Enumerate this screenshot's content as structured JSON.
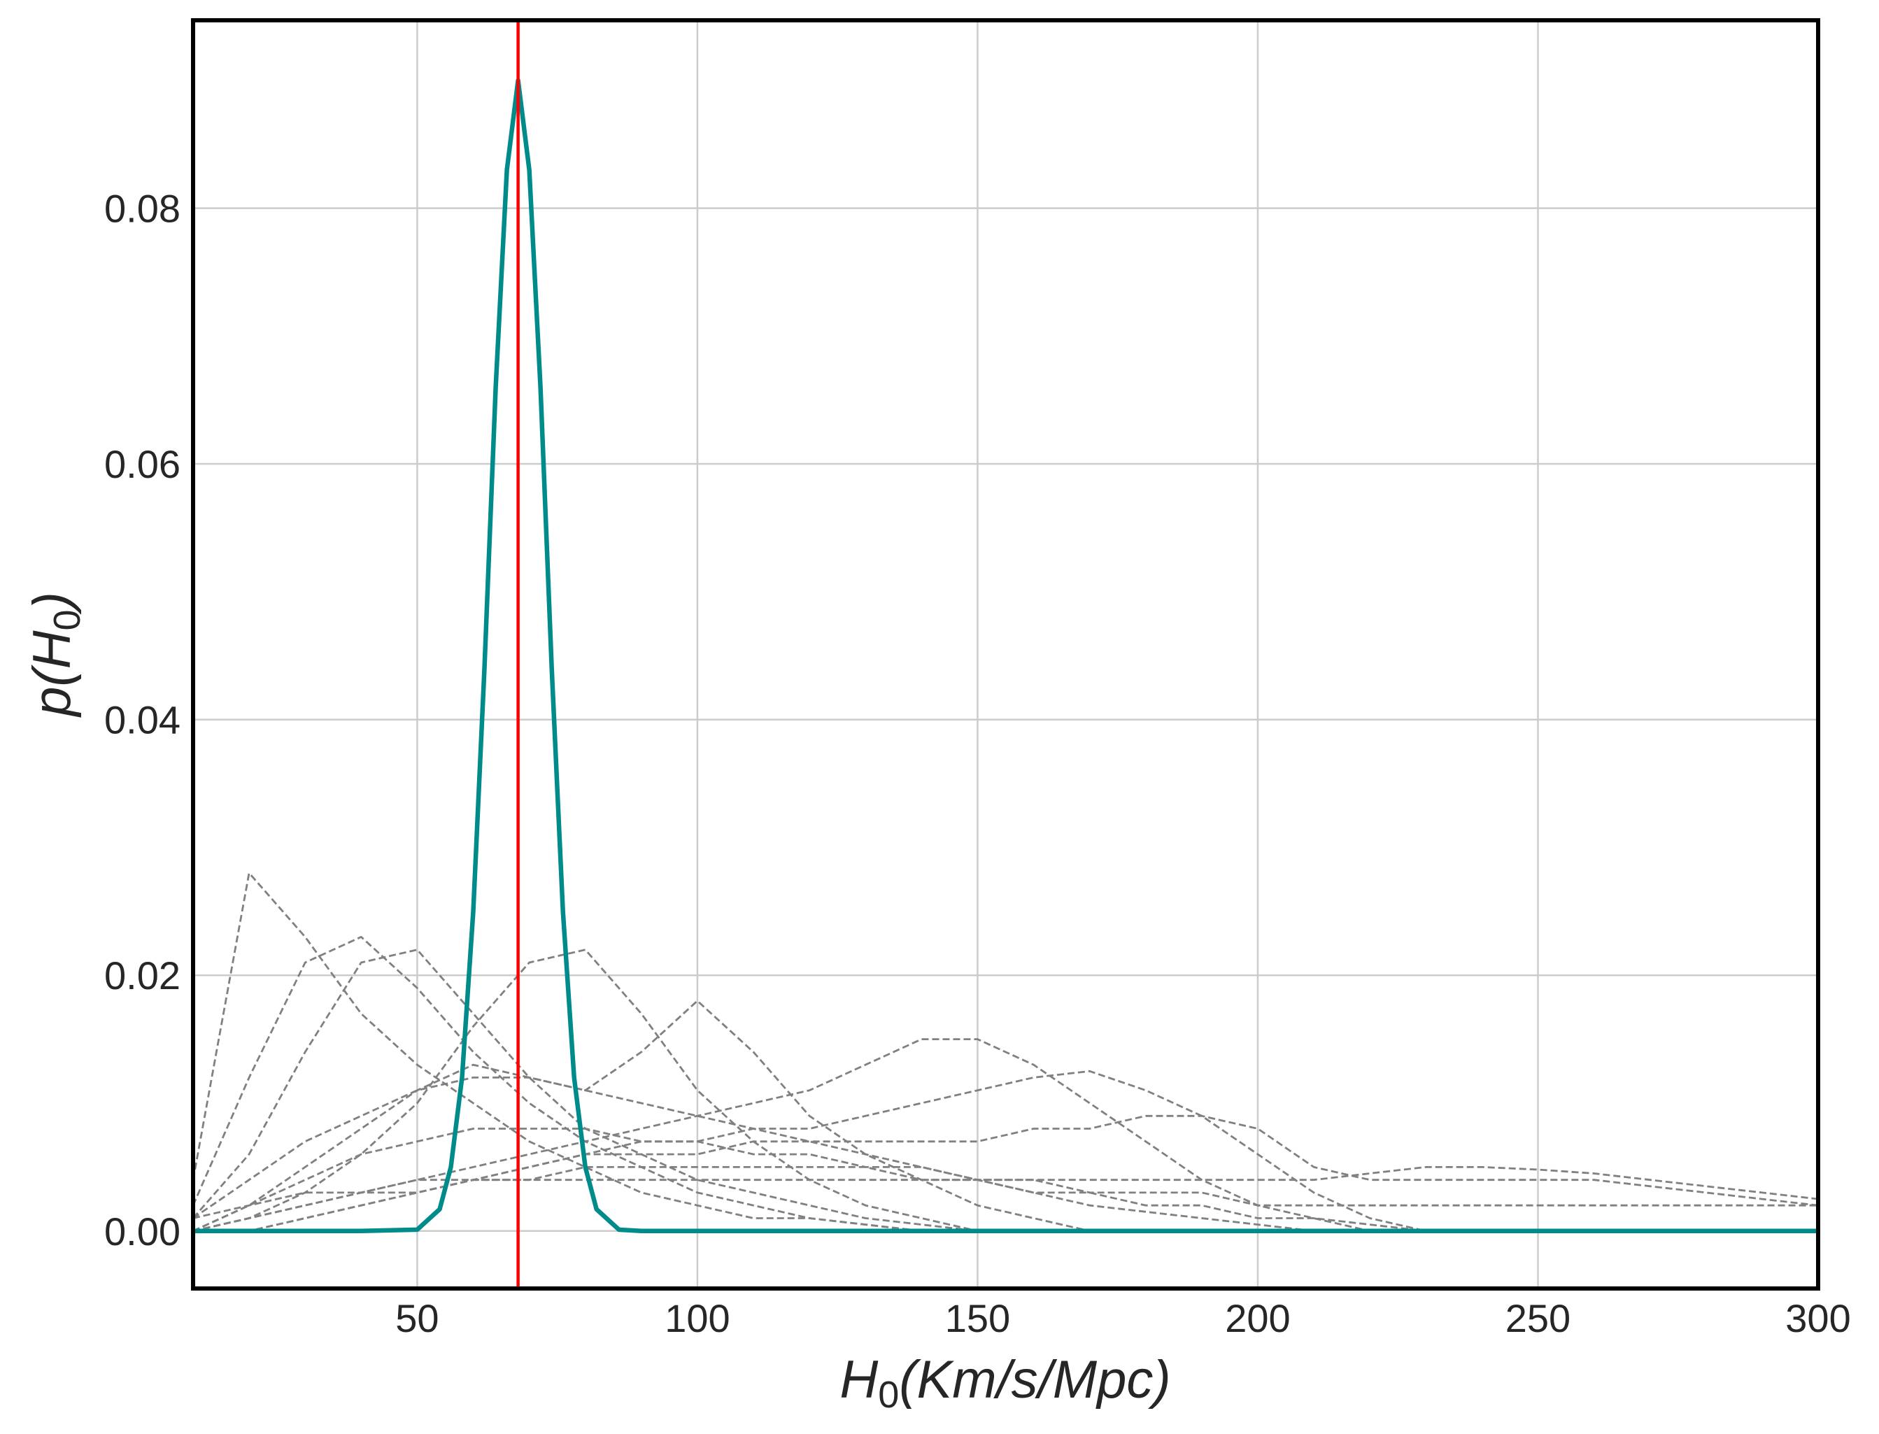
{
  "chart_data": {
    "type": "line",
    "xlabel": {
      "main": "H",
      "subscript": "0",
      "rest": "(Km/s/Mpc)"
    },
    "ylabel": {
      "main": "p(H",
      "subscript": "0",
      "rest": ")"
    },
    "xlim": [
      10,
      300
    ],
    "ylim": [
      -0.0045,
      0.0947
    ],
    "xticks": [
      50,
      100,
      150,
      200,
      250,
      300
    ],
    "yticks": [
      {
        "value": 0,
        "label": "0.00"
      },
      {
        "value": 0.02,
        "label": "0.02"
      },
      {
        "value": 0.04,
        "label": "0.04"
      },
      {
        "value": 0.06,
        "label": "0.06"
      },
      {
        "value": 0.08,
        "label": "0.08"
      }
    ],
    "grid": true,
    "x": [
      10,
      20,
      30,
      40,
      50,
      60,
      70,
      80,
      90,
      100,
      110,
      120,
      130,
      140,
      150,
      160,
      170,
      180,
      190,
      200,
      210,
      220,
      230,
      240,
      250,
      260,
      270,
      280,
      290,
      300
    ],
    "series": [
      {
        "color": "#808080",
        "dashed": true,
        "values": [
          0.004,
          0.028,
          0.023,
          0.017,
          0.013,
          0.01,
          0.007,
          0.005,
          0.003,
          0.002,
          0.001,
          0.001,
          0.0005,
          0,
          0,
          0,
          0,
          0,
          0,
          0,
          0,
          0,
          0,
          0,
          0,
          0,
          0,
          0,
          0,
          0
        ]
      },
      {
        "color": "#808080",
        "dashed": true,
        "values": [
          0.002,
          0.012,
          0.021,
          0.023,
          0.019,
          0.014,
          0.01,
          0.007,
          0.005,
          0.003,
          0.002,
          0.001,
          0.0005,
          0,
          0,
          0,
          0,
          0,
          0,
          0,
          0,
          0,
          0,
          0,
          0,
          0,
          0,
          0,
          0,
          0
        ]
      },
      {
        "color": "#808080",
        "dashed": true,
        "values": [
          0.001,
          0.006,
          0.014,
          0.021,
          0.022,
          0.017,
          0.012,
          0.008,
          0.006,
          0.004,
          0.003,
          0.002,
          0.001,
          0.0005,
          0,
          0,
          0,
          0,
          0,
          0,
          0,
          0,
          0,
          0,
          0,
          0,
          0,
          0,
          0,
          0
        ]
      },
      {
        "color": "#808080",
        "dashed": true,
        "values": [
          0,
          0.001,
          0.003,
          0.006,
          0.01,
          0.016,
          0.021,
          0.022,
          0.017,
          0.011,
          0.007,
          0.004,
          0.002,
          0.001,
          0,
          0,
          0,
          0,
          0,
          0,
          0,
          0,
          0,
          0,
          0,
          0,
          0,
          0,
          0,
          0
        ]
      },
      {
        "color": "#808080",
        "dashed": true,
        "values": [
          0,
          0.002,
          0.005,
          0.008,
          0.011,
          0.013,
          0.012,
          0.011,
          0.014,
          0.018,
          0.014,
          0.009,
          0.006,
          0.004,
          0.002,
          0.001,
          0,
          0,
          0,
          0,
          0,
          0,
          0,
          0,
          0,
          0,
          0,
          0,
          0,
          0
        ]
      },
      {
        "color": "#808080",
        "dashed": true,
        "values": [
          0,
          0.001,
          0.002,
          0.003,
          0.004,
          0.005,
          0.006,
          0.007,
          0.008,
          0.009,
          0.01,
          0.011,
          0.013,
          0.015,
          0.015,
          0.013,
          0.01,
          0.007,
          0.004,
          0.002,
          0.001,
          0,
          0,
          0,
          0,
          0,
          0,
          0,
          0,
          0
        ]
      },
      {
        "color": "#808080",
        "dashed": true,
        "values": [
          0,
          0,
          0.001,
          0.002,
          0.003,
          0.004,
          0.005,
          0.006,
          0.007,
          0.007,
          0.008,
          0.008,
          0.009,
          0.01,
          0.011,
          0.012,
          0.0125,
          0.011,
          0.009,
          0.006,
          0.003,
          0.001,
          0,
          0,
          0,
          0,
          0,
          0,
          0,
          0
        ]
      },
      {
        "color": "#808080",
        "dashed": true,
        "values": [
          0,
          0.001,
          0.002,
          0.003,
          0.003,
          0.004,
          0.004,
          0.004,
          0.004,
          0.004,
          0.004,
          0.004,
          0.004,
          0.004,
          0.004,
          0.004,
          0.004,
          0.004,
          0.004,
          0.004,
          0.004,
          0.0045,
          0.005,
          0.005,
          0.0048,
          0.0045,
          0.004,
          0.0035,
          0.003,
          0.0025
        ]
      },
      {
        "color": "#808080",
        "dashed": true,
        "values": [
          0.001,
          0.004,
          0.007,
          0.009,
          0.011,
          0.012,
          0.012,
          0.011,
          0.01,
          0.009,
          0.008,
          0.007,
          0.006,
          0.005,
          0.004,
          0.003,
          0.002,
          0.0015,
          0.001,
          0.0005,
          0,
          0,
          0,
          0,
          0,
          0,
          0,
          0,
          0,
          0
        ]
      },
      {
        "color": "#808080",
        "dashed": true,
        "values": [
          0,
          0,
          0.001,
          0.002,
          0.003,
          0.004,
          0.005,
          0.006,
          0.006,
          0.006,
          0.007,
          0.007,
          0.007,
          0.007,
          0.007,
          0.008,
          0.008,
          0.009,
          0.009,
          0.008,
          0.005,
          0.004,
          0.004,
          0.004,
          0.004,
          0.004,
          0.0035,
          0.003,
          0.0025,
          0.002
        ]
      },
      {
        "color": "#808080",
        "dashed": true,
        "values": [
          0,
          0.002,
          0.004,
          0.006,
          0.007,
          0.008,
          0.008,
          0.008,
          0.007,
          0.007,
          0.006,
          0.006,
          0.005,
          0.005,
          0.004,
          0.003,
          0.003,
          0.002,
          0.002,
          0.001,
          0.001,
          0.0005,
          0,
          0,
          0,
          0,
          0,
          0,
          0,
          0
        ]
      },
      {
        "color": "#808080",
        "dashed": true,
        "values": [
          0.001,
          0.002,
          0.003,
          0.003,
          0.004,
          0.004,
          0.004,
          0.005,
          0.005,
          0.005,
          0.005,
          0.005,
          0.005,
          0.004,
          0.004,
          0.004,
          0.003,
          0.003,
          0.003,
          0.002,
          0.002,
          0.002,
          0.002,
          0.002,
          0.002,
          0.002,
          0.002,
          0.002,
          0.002,
          0.002
        ]
      },
      {
        "color": "#008b8b",
        "dashed": false,
        "x": [
          10,
          40,
          50,
          54,
          56,
          58,
          60,
          62,
          64,
          66,
          68,
          70,
          72,
          74,
          76,
          78,
          80,
          82,
          86,
          90,
          300
        ],
        "values": [
          0,
          0,
          0.0001,
          0.0017,
          0.005,
          0.012,
          0.025,
          0.044,
          0.066,
          0.083,
          0.09,
          0.083,
          0.066,
          0.044,
          0.025,
          0.012,
          0.005,
          0.0017,
          0.0001,
          0,
          0
        ]
      }
    ],
    "reference_line": {
      "x": 68,
      "color": "#ff0000"
    }
  }
}
